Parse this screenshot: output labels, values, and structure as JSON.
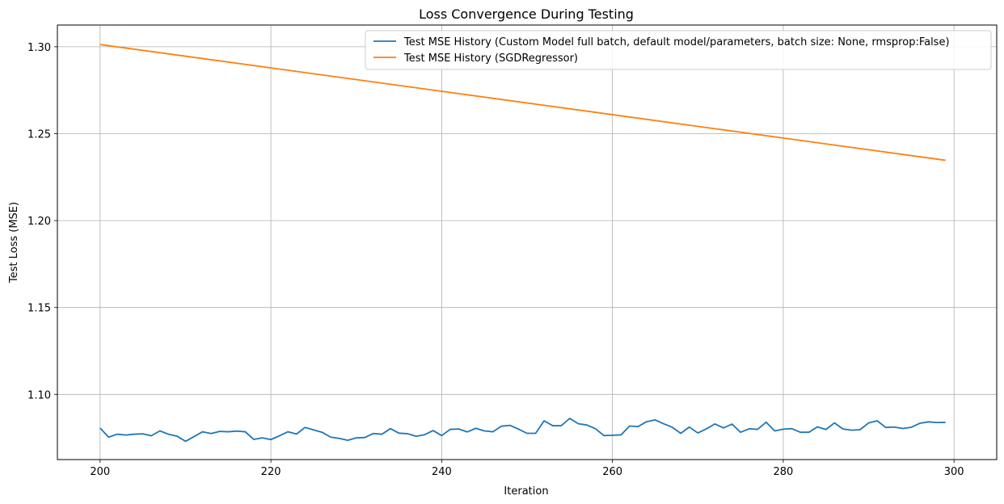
{
  "chart_data": {
    "type": "line",
    "title": "Loss Convergence During Testing",
    "xlabel": "Iteration",
    "ylabel": "Test Loss (MSE)",
    "xlim": [
      195,
      305
    ],
    "ylim": [
      1.0625,
      1.3125
    ],
    "xticks": [
      200,
      220,
      240,
      260,
      280,
      300
    ],
    "yticks": [
      1.1,
      1.15,
      1.2,
      1.25,
      1.3
    ],
    "ytick_labels": [
      "1.10",
      "1.15",
      "1.20",
      "1.25",
      "1.30"
    ],
    "grid": true,
    "legend_position": "top-right",
    "series": [
      {
        "name": "Test MSE History (Custom Model full batch, default model/parameters, batch size: None, rmsprop:False)",
        "color": "#1f77b4",
        "x": [
          200,
          201,
          202,
          203,
          204,
          205,
          206,
          207,
          208,
          209,
          210,
          211,
          212,
          213,
          214,
          215,
          216,
          217,
          218,
          219,
          220,
          221,
          222,
          223,
          224,
          225,
          226,
          227,
          228,
          229,
          230,
          231,
          232,
          233,
          234,
          235,
          236,
          237,
          238,
          239,
          240,
          241,
          242,
          243,
          244,
          245,
          246,
          247,
          248,
          249,
          250,
          251,
          252,
          253,
          254,
          255,
          256,
          257,
          258,
          259,
          260,
          261,
          262,
          263,
          264,
          265,
          266,
          267,
          268,
          269,
          270,
          271,
          272,
          273,
          274,
          275,
          276,
          277,
          278,
          279,
          280,
          281,
          282,
          283,
          284,
          285,
          286,
          287,
          288,
          289,
          290,
          291,
          292,
          293,
          294,
          295,
          296,
          297,
          298,
          299
        ],
        "y": [
          1.0806,
          1.0754,
          1.0771,
          1.0766,
          1.0771,
          1.0773,
          1.0762,
          1.079,
          1.0771,
          1.076,
          1.073,
          1.0757,
          1.0785,
          1.0775,
          1.0787,
          1.0785,
          1.0789,
          1.0785,
          1.0741,
          1.075,
          1.074,
          1.0762,
          1.0785,
          1.0772,
          1.081,
          1.0796,
          1.0782,
          1.0754,
          1.0747,
          1.0736,
          1.075,
          1.0752,
          1.0775,
          1.0771,
          1.0803,
          1.0777,
          1.0774,
          1.0759,
          1.0768,
          1.0792,
          1.0763,
          1.0799,
          1.0801,
          1.0784,
          1.0805,
          1.079,
          1.0785,
          1.0817,
          1.0822,
          1.08,
          1.0776,
          1.0776,
          1.0848,
          1.082,
          1.082,
          1.0862,
          1.0831,
          1.0824,
          1.0803,
          1.0763,
          1.0765,
          1.0767,
          1.0818,
          1.0815,
          1.0843,
          1.0853,
          1.0831,
          1.0811,
          1.0776,
          1.0812,
          1.0778,
          1.0802,
          1.083,
          1.0807,
          1.0829,
          1.0782,
          1.0802,
          1.0799,
          1.084,
          1.079,
          1.08,
          1.0803,
          1.0782,
          1.0782,
          1.0813,
          1.0798,
          1.0836,
          1.0801,
          1.0794,
          1.0797,
          1.0836,
          1.0848,
          1.081,
          1.0812,
          1.0804,
          1.0811,
          1.0834,
          1.0842,
          1.0838,
          1.0839
        ]
      },
      {
        "name": "Test MSE History (SGDRegressor)",
        "color": "#ff7f0e",
        "x": [
          200,
          299
        ],
        "y": [
          1.3013,
          1.2347
        ]
      }
    ]
  }
}
